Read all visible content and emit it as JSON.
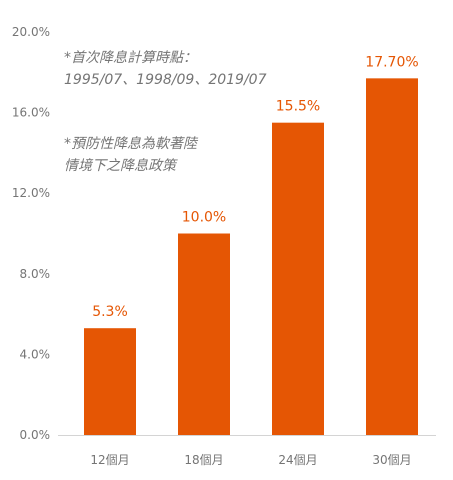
{
  "colors": {
    "bar": "#e55604",
    "label": "#e55604",
    "axis": "#d4d4d4",
    "text": "#757575"
  },
  "notes": {
    "line1": "*首次降息計算時點：",
    "line2": "1995/07、1998/09、2019/07",
    "line3": "*預防性降息為軟著陸",
    "line4": "情境下之降息政策"
  },
  "chart_data": {
    "type": "bar",
    "categories": [
      "12個月",
      "18個月",
      "24個月",
      "30個月"
    ],
    "values": [
      5.3,
      10.0,
      15.5,
      17.7
    ],
    "value_labels": [
      "5.3%",
      "10.0%",
      "15.5%",
      "17.70%"
    ],
    "yticks": [
      "0.0%",
      "4.0%",
      "8.0%",
      "12.0%",
      "16.0%",
      "20.0%"
    ],
    "ylim": [
      0,
      20
    ],
    "grid": false,
    "title": "",
    "xlabel": "",
    "ylabel": ""
  }
}
